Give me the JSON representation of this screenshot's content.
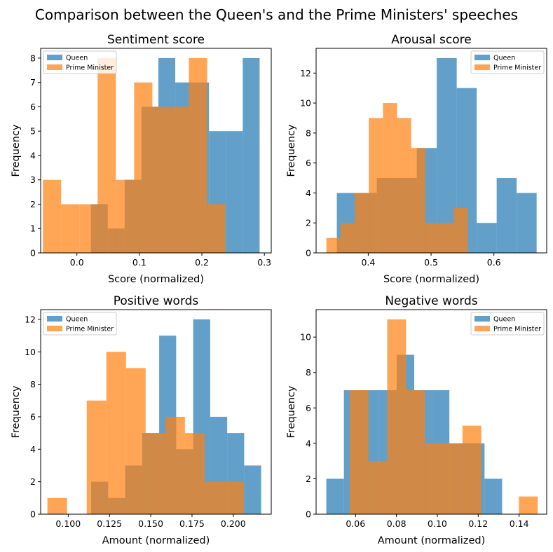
{
  "figure": {
    "title": "Comparison between the Queen's and the Prime Ministers' speeches"
  },
  "colors": {
    "queen": "#1f77b4",
    "pm": "#ff7f0e"
  },
  "chart_data": [
    {
      "type": "bar",
      "kind": "histogram",
      "title": "Sentiment score",
      "xlabel": "Score (normalized)",
      "ylabel": "Frequency",
      "xlim": [
        -0.058,
        0.311
      ],
      "ylim": [
        0,
        8.4
      ],
      "xticks": [
        0.0,
        0.1,
        0.2,
        0.3
      ],
      "xtick_labels": [
        "0.0",
        "0.1",
        "0.2",
        "0.3"
      ],
      "yticks": [
        0,
        1,
        2,
        3,
        4,
        5,
        6,
        7,
        8
      ],
      "ytick_labels": [
        "0",
        "1",
        "2",
        "3",
        "4",
        "5",
        "6",
        "7",
        "8"
      ],
      "legend": "top-left",
      "series": [
        {
          "name": "Queen",
          "bin_edges": [
            0.0224,
            0.0494,
            0.0764,
            0.1034,
            0.1304,
            0.1574,
            0.1844,
            0.2114,
            0.2384,
            0.2654,
            0.2924
          ],
          "values": [
            2,
            1,
            3,
            6,
            8,
            7,
            7,
            5,
            5,
            8
          ]
        },
        {
          "name": "Prime Minister",
          "bin_edges": [
            -0.0544,
            -0.0252,
            0.004,
            0.0332,
            0.0624,
            0.0916,
            0.1208,
            0.15,
            0.1792,
            0.2084,
            0.2376
          ],
          "values": [
            3,
            2,
            2,
            8,
            3,
            7,
            6,
            6,
            8,
            2
          ]
        }
      ]
    },
    {
      "type": "bar",
      "kind": "histogram",
      "title": "Arousal score",
      "xlabel": "Score (normalized)",
      "ylabel": "Frequency",
      "xlim": [
        0.317,
        0.684
      ],
      "ylim": [
        0,
        13.65
      ],
      "xticks": [
        0.4,
        0.5,
        0.6
      ],
      "xtick_labels": [
        "0.4",
        "0.5",
        "0.6"
      ],
      "yticks": [
        0,
        2,
        4,
        6,
        8,
        10,
        12
      ],
      "ytick_labels": [
        "0",
        "2",
        "4",
        "6",
        "8",
        "10",
        "12"
      ],
      "legend": "top-right",
      "series": [
        {
          "name": "Queen",
          "bin_edges": [
            0.35,
            0.3818,
            0.4136,
            0.4454,
            0.4772,
            0.509,
            0.5408,
            0.5726,
            0.6044,
            0.6362,
            0.668
          ],
          "values": [
            4,
            4,
            5,
            5,
            7,
            13,
            11,
            2,
            5,
            4
          ]
        },
        {
          "name": "Prime Minister",
          "bin_edges": [
            0.3334,
            0.3559,
            0.3784,
            0.4009,
            0.4234,
            0.4459,
            0.4684,
            0.4909,
            0.5134,
            0.5359,
            0.5584
          ],
          "values": [
            1,
            2,
            4,
            9,
            10,
            9,
            7,
            2,
            2,
            3
          ]
        }
      ]
    },
    {
      "type": "bar",
      "kind": "histogram",
      "title": "Positive words",
      "xlabel": "Amount (normalized)",
      "ylabel": "Frequency",
      "xlim": [
        0.0833,
        0.223
      ],
      "ylim": [
        0,
        12.6
      ],
      "xticks": [
        0.1,
        0.125,
        0.15,
        0.175,
        0.2
      ],
      "xtick_labels": [
        "0.100",
        "0.125",
        "0.150",
        "0.175",
        "0.200"
      ],
      "yticks": [
        0,
        2,
        4,
        6,
        8,
        10,
        12
      ],
      "ytick_labels": [
        "0",
        "2",
        "4",
        "6",
        "8",
        "10",
        "12"
      ],
      "legend": "top-left",
      "series": [
        {
          "name": "Queen",
          "bin_edges": [
            0.1139,
            0.1242,
            0.1345,
            0.1448,
            0.1551,
            0.1654,
            0.1757,
            0.186,
            0.1963,
            0.2066,
            0.2169
          ],
          "values": [
            2,
            1,
            3,
            5,
            11,
            4,
            12,
            6,
            5,
            3
          ]
        },
        {
          "name": "Prime Minister",
          "bin_edges": [
            0.0874,
            0.0993,
            0.1112,
            0.1231,
            0.135,
            0.1469,
            0.1588,
            0.1707,
            0.1826,
            0.1945,
            0.2064
          ],
          "values": [
            1,
            0,
            7,
            10,
            9,
            5,
            6,
            5,
            2,
            2
          ]
        }
      ]
    },
    {
      "type": "bar",
      "kind": "histogram",
      "title": "Negative words",
      "xlabel": "Amount (normalized)",
      "ylabel": "Frequency",
      "xlim": [
        0.0407,
        0.1535
      ],
      "ylim": [
        0,
        11.55
      ],
      "xticks": [
        0.06,
        0.08,
        0.1,
        0.12,
        0.14
      ],
      "xtick_labels": [
        "0.06",
        "0.08",
        "0.10",
        "0.12",
        "0.14"
      ],
      "yticks": [
        0,
        2,
        4,
        6,
        8,
        10
      ],
      "ytick_labels": [
        "0",
        "2",
        "4",
        "6",
        "8",
        "10"
      ],
      "legend": "top-right",
      "series": [
        {
          "name": "Queen",
          "bin_edges": [
            0.0457,
            0.0543,
            0.0629,
            0.0715,
            0.0801,
            0.0887,
            0.0973,
            0.1059,
            0.1145,
            0.1231,
            0.1317
          ],
          "values": [
            2,
            7,
            7,
            7,
            9,
            7,
            7,
            4,
            4,
            2
          ]
        },
        {
          "name": "Prime Minister",
          "bin_edges": [
            0.0571,
            0.0663,
            0.0755,
            0.0847,
            0.0939,
            0.1031,
            0.1123,
            0.1215,
            0.1307,
            0.1399,
            0.1491
          ],
          "values": [
            7,
            3,
            11,
            7,
            4,
            4,
            5,
            0,
            0,
            1
          ]
        }
      ]
    }
  ]
}
